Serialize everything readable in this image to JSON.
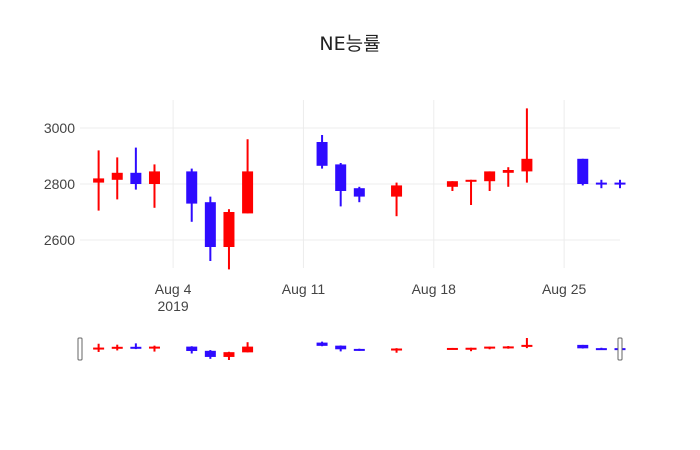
{
  "chart_data": {
    "type": "candlestick",
    "title": "NE능률",
    "xlabel": "",
    "ylabel": "",
    "x_ticks": [
      {
        "date": "2019-08-04",
        "label": "Aug 4",
        "sublabel": "2019"
      },
      {
        "date": "2019-08-11",
        "label": "Aug 11",
        "sublabel": ""
      },
      {
        "date": "2019-08-18",
        "label": "Aug 18",
        "sublabel": ""
      },
      {
        "date": "2019-08-25",
        "label": "Aug 25",
        "sublabel": ""
      }
    ],
    "y_ticks": [
      2600,
      2800,
      3000
    ],
    "xlim": [
      "2019-07-30",
      "2019-08-28"
    ],
    "ylim": [
      2500,
      3100
    ],
    "grid": true,
    "rangeslider": true,
    "colors": {
      "increasing": "#ff0000",
      "decreasing": "#2e0bff",
      "grid": "#ececec"
    },
    "candles": [
      {
        "date": "2019-07-31",
        "open": 2805,
        "high": 2920,
        "low": 2705,
        "close": 2820
      },
      {
        "date": "2019-08-01",
        "open": 2815,
        "high": 2895,
        "low": 2745,
        "close": 2840
      },
      {
        "date": "2019-08-02",
        "open": 2840,
        "high": 2930,
        "low": 2780,
        "close": 2800
      },
      {
        "date": "2019-08-03",
        "open": 2800,
        "high": 2870,
        "low": 2715,
        "close": 2845
      },
      {
        "date": "2019-08-05",
        "open": 2845,
        "high": 2855,
        "low": 2665,
        "close": 2730
      },
      {
        "date": "2019-08-06",
        "open": 2735,
        "high": 2755,
        "low": 2525,
        "close": 2575
      },
      {
        "date": "2019-08-07",
        "open": 2575,
        "high": 2710,
        "low": 2495,
        "close": 2700
      },
      {
        "date": "2019-08-08",
        "open": 2695,
        "high": 2960,
        "low": 2695,
        "close": 2845
      },
      {
        "date": "2019-08-12",
        "open": 2950,
        "high": 2975,
        "low": 2855,
        "close": 2865
      },
      {
        "date": "2019-08-13",
        "open": 2870,
        "high": 2875,
        "low": 2720,
        "close": 2775
      },
      {
        "date": "2019-08-14",
        "open": 2785,
        "high": 2790,
        "low": 2735,
        "close": 2755
      },
      {
        "date": "2019-08-16",
        "open": 2755,
        "high": 2805,
        "low": 2685,
        "close": 2795
      },
      {
        "date": "2019-08-19",
        "open": 2790,
        "high": 2810,
        "low": 2775,
        "close": 2810
      },
      {
        "date": "2019-08-20",
        "open": 2810,
        "high": 2815,
        "low": 2725,
        "close": 2815
      },
      {
        "date": "2019-08-21",
        "open": 2810,
        "high": 2845,
        "low": 2775,
        "close": 2845
      },
      {
        "date": "2019-08-22",
        "open": 2840,
        "high": 2860,
        "low": 2790,
        "close": 2850
      },
      {
        "date": "2019-08-23",
        "open": 2845,
        "high": 3070,
        "low": 2805,
        "close": 2890
      },
      {
        "date": "2019-08-26",
        "open": 2890,
        "high": 2890,
        "low": 2795,
        "close": 2800
      },
      {
        "date": "2019-08-27",
        "open": 2805,
        "high": 2815,
        "low": 2785,
        "close": 2800
      },
      {
        "date": "2019-08-28",
        "open": 2805,
        "high": 2815,
        "low": 2785,
        "close": 2800
      }
    ]
  }
}
